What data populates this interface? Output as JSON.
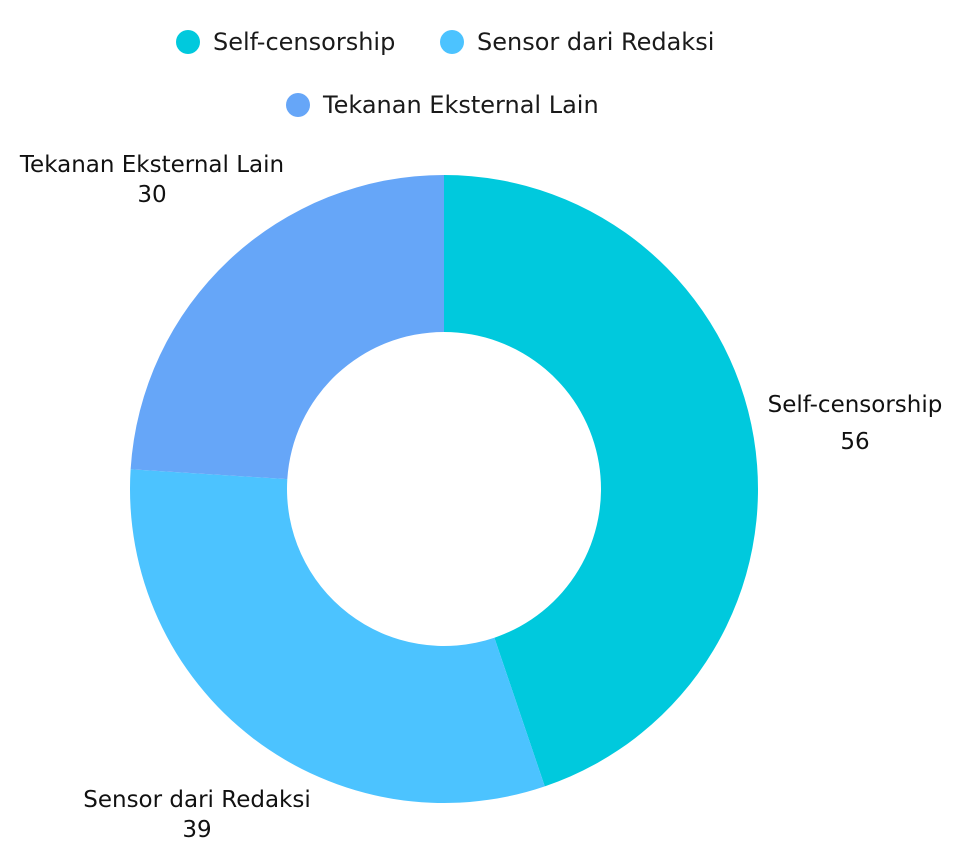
{
  "chart_data": {
    "type": "pie",
    "variant": "donut",
    "title": "",
    "categories": [
      "Self-censorship",
      "Sensor dari Redaksi",
      "Tekanan Eksternal Lain"
    ],
    "values": [
      56,
      39,
      30
    ],
    "colors": [
      "#00C9DD",
      "#4CC3FF",
      "#66A6F8"
    ],
    "legend_position": "top",
    "show_value_labels": true
  }
}
